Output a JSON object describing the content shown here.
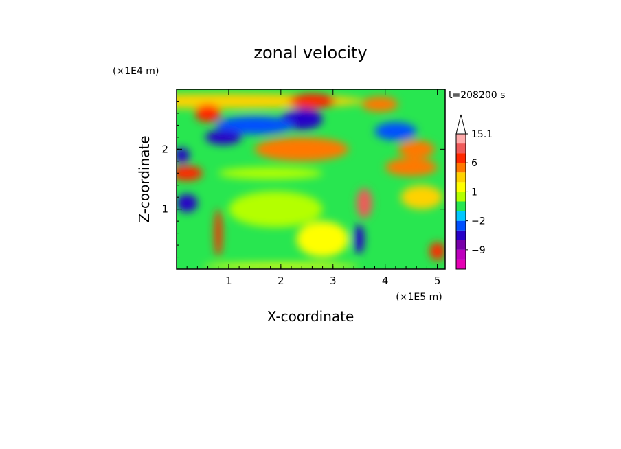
{
  "chart_data": {
    "type": "heatmap",
    "title": "zonal velocity",
    "xlabel": "X-coordinate",
    "ylabel": "Z-coordinate",
    "x_unit": "(×1E5 m)",
    "y_unit": "(×1E4 m)",
    "time_label": "t=208200 s",
    "xlim": [
      0,
      5.15
    ],
    "ylim": [
      0,
      3.0
    ],
    "x_ticks": [
      {
        "value": 1,
        "label": "1"
      },
      {
        "value": 2,
        "label": "2"
      },
      {
        "value": 3,
        "label": "3"
      },
      {
        "value": 4,
        "label": "4"
      },
      {
        "value": 5,
        "label": "5"
      }
    ],
    "y_ticks": [
      {
        "value": 1,
        "label": "1"
      },
      {
        "value": 2,
        "label": "2"
      }
    ],
    "colorbar": {
      "levels": [
        -15,
        -12,
        -9,
        -6,
        -3,
        -2,
        -1,
        0,
        1,
        2,
        3,
        6,
        9,
        12,
        15.1
      ],
      "colors": [
        "#e600b4",
        "#be00be",
        "#7800aa",
        "#2800c8",
        "#0050ff",
        "#00c8ff",
        "#28e650",
        "#b4ff00",
        "#ffff00",
        "#ffd200",
        "#ff7800",
        "#ff2800",
        "#f05a5a",
        "#ffaaaa"
      ],
      "tick_labels": [
        {
          "value": 15.1,
          "label": "15.1"
        },
        {
          "value": 6,
          "label": "6"
        },
        {
          "value": 1,
          "label": "1"
        },
        {
          "value": -2,
          "label": "−2"
        },
        {
          "value": -9,
          "label": "−9"
        }
      ],
      "extend": "max"
    },
    "field_features": [
      {
        "x": 1.0,
        "z": 2.8,
        "w": 5.2,
        "h": 0.25,
        "value": 2
      },
      {
        "x": 0.6,
        "z": 2.6,
        "w": 0.5,
        "h": 0.3,
        "value": 6
      },
      {
        "x": 2.6,
        "z": 2.8,
        "w": 0.9,
        "h": 0.25,
        "value": 6
      },
      {
        "x": 3.9,
        "z": 2.75,
        "w": 0.7,
        "h": 0.25,
        "value": 4
      },
      {
        "x": 2.4,
        "z": 2.5,
        "w": 0.8,
        "h": 0.35,
        "value": -6
      },
      {
        "x": 1.5,
        "z": 2.4,
        "w": 1.5,
        "h": 0.3,
        "value": -3
      },
      {
        "x": 0.9,
        "z": 2.2,
        "w": 0.7,
        "h": 0.25,
        "value": -4
      },
      {
        "x": 2.4,
        "z": 2.0,
        "w": 1.8,
        "h": 0.4,
        "value": 5
      },
      {
        "x": 4.2,
        "z": 2.3,
        "w": 0.8,
        "h": 0.3,
        "value": -3
      },
      {
        "x": 0.1,
        "z": 1.9,
        "w": 0.3,
        "h": 0.25,
        "value": -5
      },
      {
        "x": 4.6,
        "z": 2.0,
        "w": 0.7,
        "h": 0.3,
        "value": 4
      },
      {
        "x": 0.2,
        "z": 1.6,
        "w": 0.6,
        "h": 0.25,
        "value": 7
      },
      {
        "x": 1.8,
        "z": 1.6,
        "w": 2.0,
        "h": 0.2,
        "value": 0
      },
      {
        "x": 4.5,
        "z": 1.7,
        "w": 1.0,
        "h": 0.3,
        "value": 3
      },
      {
        "x": 0.2,
        "z": 1.1,
        "w": 0.4,
        "h": 0.3,
        "value": -4
      },
      {
        "x": 1.9,
        "z": 1.0,
        "w": 1.8,
        "h": 0.6,
        "value": 0
      },
      {
        "x": 3.6,
        "z": 1.1,
        "w": 0.3,
        "h": 0.5,
        "value": 9
      },
      {
        "x": 4.7,
        "z": 1.2,
        "w": 0.8,
        "h": 0.4,
        "value": 2
      },
      {
        "x": 0.8,
        "z": 0.6,
        "w": 0.15,
        "h": 0.8,
        "value": 8
      },
      {
        "x": 2.8,
        "z": 0.5,
        "w": 1.0,
        "h": 0.6,
        "value": 1
      },
      {
        "x": 3.5,
        "z": 0.5,
        "w": 0.2,
        "h": 0.5,
        "value": -5
      },
      {
        "x": 5.0,
        "z": 0.3,
        "w": 0.3,
        "h": 0.3,
        "value": 6
      },
      {
        "x": 2.0,
        "z": 0.05,
        "w": 3.0,
        "h": 0.1,
        "value": 1
      }
    ]
  }
}
